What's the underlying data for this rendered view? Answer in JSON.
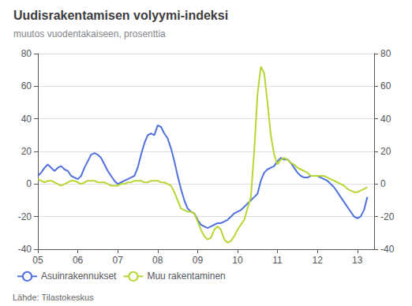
{
  "chart_data": {
    "type": "line",
    "title": "Uudisrakentamisen volyymi-indeksi",
    "subtitle": "muutos vuodentakaiseen, prosenttia",
    "annotations": [
      "Lähde: Tilastokeskus"
    ],
    "x": [
      2005.0,
      2005.083,
      2005.167,
      2005.25,
      2005.333,
      2005.417,
      2005.5,
      2005.583,
      2005.667,
      2005.75,
      2005.833,
      2005.917,
      2006.0,
      2006.083,
      2006.167,
      2006.25,
      2006.333,
      2006.417,
      2006.5,
      2006.583,
      2006.667,
      2006.75,
      2006.833,
      2006.917,
      2007.0,
      2007.083,
      2007.167,
      2007.25,
      2007.333,
      2007.417,
      2007.5,
      2007.583,
      2007.667,
      2007.75,
      2007.833,
      2007.917,
      2008.0,
      2008.083,
      2008.167,
      2008.25,
      2008.333,
      2008.417,
      2008.5,
      2008.583,
      2008.667,
      2008.75,
      2008.833,
      2008.917,
      2009.0,
      2009.083,
      2009.167,
      2009.25,
      2009.333,
      2009.417,
      2009.5,
      2009.583,
      2009.667,
      2009.75,
      2009.833,
      2009.917,
      2010.0,
      2010.083,
      2010.167,
      2010.25,
      2010.333,
      2010.417,
      2010.5,
      2010.583,
      2010.667,
      2010.75,
      2010.833,
      2010.917,
      2011.0,
      2011.083,
      2011.167,
      2011.25,
      2011.333,
      2011.417,
      2011.5,
      2011.583,
      2011.667,
      2011.75,
      2011.833,
      2011.917,
      2012.0,
      2012.083,
      2012.167,
      2012.25,
      2012.333,
      2012.417,
      2012.5,
      2012.583,
      2012.667,
      2012.75,
      2012.833,
      2012.917,
      2013.0,
      2013.083,
      2013.167,
      2013.25
    ],
    "series": [
      {
        "name": "Asuinrakennukset",
        "values": [
          5,
          7,
          10,
          12,
          10,
          8,
          10,
          11,
          9,
          8,
          5,
          4,
          3,
          5,
          10,
          14,
          18,
          19,
          18,
          16,
          12,
          8,
          5,
          2,
          0,
          1,
          2,
          3,
          4,
          5,
          10,
          18,
          25,
          30,
          31,
          30,
          36,
          35,
          31,
          28,
          22,
          14,
          5,
          -3,
          -10,
          -15,
          -17,
          -18,
          -22,
          -25,
          -26,
          -27,
          -26,
          -25,
          -24,
          -24,
          -23,
          -22,
          -20,
          -18,
          -17,
          -16,
          -14,
          -12,
          -10,
          -8,
          -6,
          2,
          7,
          9,
          10,
          11,
          14,
          16,
          15,
          15,
          13,
          10,
          7,
          5,
          4,
          4,
          5,
          5,
          5,
          4,
          3,
          2,
          0,
          -2,
          -5,
          -8,
          -11,
          -14,
          -17,
          -20,
          -21,
          -20,
          -16,
          -8
        ]
      },
      {
        "name": "Muu rakentaminen",
        "values": [
          3,
          2,
          1,
          2,
          2,
          1,
          0,
          -1,
          0,
          1,
          2,
          2,
          1,
          0,
          1,
          2,
          2,
          2,
          1,
          1,
          1,
          0,
          -1,
          -1,
          -1,
          0,
          0,
          1,
          1,
          2,
          2,
          2,
          1,
          1,
          2,
          2,
          2,
          1,
          1,
          0,
          -1,
          -5,
          -10,
          -15,
          -16,
          -17,
          -17,
          -18,
          -23,
          -28,
          -32,
          -34,
          -33,
          -28,
          -26,
          -28,
          -34,
          -36,
          -35,
          -32,
          -28,
          -25,
          -22,
          -15,
          -8,
          20,
          55,
          72,
          68,
          50,
          30,
          18,
          12,
          15,
          16,
          15,
          13,
          12,
          10,
          9,
          8,
          7,
          5,
          5,
          5,
          5,
          5,
          4,
          3,
          2,
          1,
          0,
          -1,
          -3,
          -4,
          -5,
          -5,
          -4,
          -3,
          -2
        ]
      }
    ],
    "xlim": [
      2005.0,
      2013.42
    ],
    "xticks": [
      {
        "value": 2005,
        "label": "05"
      },
      {
        "value": 2006,
        "label": "06"
      },
      {
        "value": 2007,
        "label": "07"
      },
      {
        "value": 2008,
        "label": "08"
      },
      {
        "value": 2009,
        "label": "09"
      },
      {
        "value": 2010,
        "label": "10"
      },
      {
        "value": 2011,
        "label": "11"
      },
      {
        "value": 2012,
        "label": "12"
      },
      {
        "value": 2013,
        "label": "13"
      }
    ],
    "ylim": [
      -40,
      80
    ],
    "yticks": [
      -40,
      -20,
      0,
      20,
      40,
      60,
      80
    ],
    "y2lim": [
      -40,
      80
    ],
    "y2ticks": [
      -40,
      -20,
      0,
      20,
      40,
      60,
      80
    ],
    "grid": true,
    "legend": "lower left"
  }
}
